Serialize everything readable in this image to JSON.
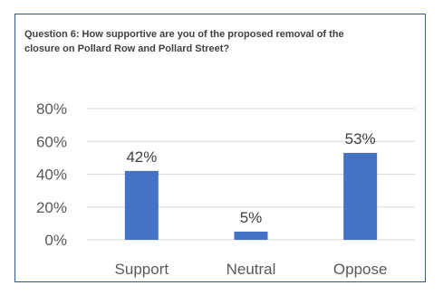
{
  "chart_data": {
    "type": "bar",
    "title": "Question 6: How supportive are you of the proposed removal of the closure on Pollard Row and Pollard Street?",
    "categories": [
      "Support",
      "Neutral",
      "Oppose"
    ],
    "values": [
      42,
      5,
      53
    ],
    "data_labels": [
      "42%",
      "5%",
      "53%"
    ],
    "y_ticks": [
      0,
      20,
      40,
      60,
      80
    ],
    "y_tick_labels": [
      "0%",
      "20%",
      "40%",
      "60%",
      "80%"
    ],
    "ylim": [
      0,
      80
    ],
    "grid": true,
    "legend": "none",
    "bar_color": "#4472c4",
    "grid_color": "#d9d9d9",
    "frame_color": "#2f5496"
  }
}
